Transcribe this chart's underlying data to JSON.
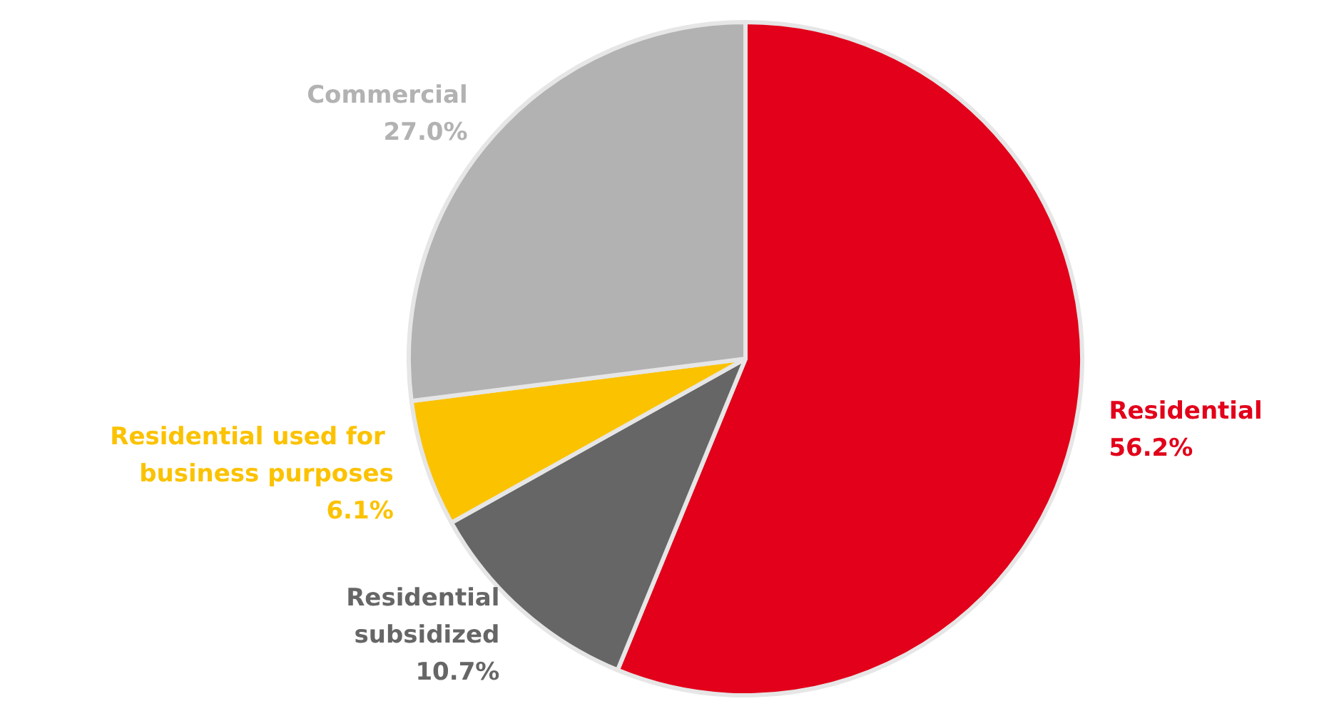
{
  "chart_data": {
    "type": "pie",
    "categories": [
      "Residential",
      "Residential\nsubsidized",
      "Residential  used for\nbusiness purposes",
      "Commercial"
    ],
    "values": [
      56.2,
      10.7,
      6.1,
      27.0
    ],
    "value_labels": [
      "56.2%",
      "10.7%",
      "6.1%",
      "27.0%"
    ],
    "colors": [
      "#e2001a",
      "#666666",
      "#fbc200",
      "#b2b2b2"
    ]
  }
}
